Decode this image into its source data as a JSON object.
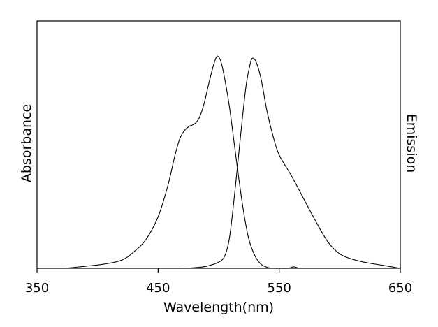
{
  "chart_data": {
    "type": "line",
    "xlabel": "Wavelength(nm)",
    "ylabel": "Absorbance",
    "ylabel_right": "Emission",
    "xlim": [
      350,
      650
    ],
    "ylim": [
      0,
      1.2
    ],
    "x_ticks": [
      350,
      450,
      550,
      650
    ],
    "x_tick_labels": [
      "350",
      "450",
      "550",
      "650"
    ],
    "grid": false,
    "series": [
      {
        "points": [
          [
            373,
            0.0
          ],
          [
            390,
            0.01
          ],
          [
            405,
            0.02
          ],
          [
            420,
            0.04
          ],
          [
            430,
            0.08
          ],
          [
            440,
            0.14
          ],
          [
            450,
            0.25
          ],
          [
            458,
            0.4
          ],
          [
            464,
            0.55
          ],
          [
            468,
            0.63
          ],
          [
            472,
            0.67
          ],
          [
            476,
            0.69
          ],
          [
            480,
            0.7
          ],
          [
            484,
            0.73
          ],
          [
            488,
            0.8
          ],
          [
            492,
            0.9
          ],
          [
            496,
            0.99
          ],
          [
            499,
            1.03
          ],
          [
            502,
            1.0
          ],
          [
            505,
            0.92
          ],
          [
            509,
            0.78
          ],
          [
            513,
            0.6
          ],
          [
            517,
            0.42
          ],
          [
            521,
            0.26
          ],
          [
            525,
            0.14
          ],
          [
            530,
            0.06
          ],
          [
            535,
            0.02
          ],
          [
            540,
            0.005
          ],
          [
            545,
            0.0
          ],
          [
            550,
            0.0
          ],
          [
            557,
            0.0
          ],
          [
            562,
            0.007
          ],
          [
            566,
            0.0
          ]
        ],
        "color": "#000000"
      },
      {
        "points": [
          [
            470,
            0.0
          ],
          [
            480,
            0.003
          ],
          [
            490,
            0.01
          ],
          [
            500,
            0.03
          ],
          [
            505,
            0.06
          ],
          [
            509,
            0.15
          ],
          [
            513,
            0.35
          ],
          [
            517,
            0.58
          ],
          [
            520,
            0.75
          ],
          [
            523,
            0.9
          ],
          [
            526,
            0.99
          ],
          [
            528,
            1.02
          ],
          [
            531,
            1.0
          ],
          [
            535,
            0.92
          ],
          [
            540,
            0.76
          ],
          [
            545,
            0.64
          ],
          [
            550,
            0.55
          ],
          [
            560,
            0.45
          ],
          [
            570,
            0.34
          ],
          [
            580,
            0.23
          ],
          [
            590,
            0.13
          ],
          [
            600,
            0.07
          ],
          [
            610,
            0.045
          ],
          [
            620,
            0.03
          ],
          [
            635,
            0.015
          ],
          [
            650,
            0.0
          ]
        ],
        "color": "#000000"
      }
    ]
  }
}
